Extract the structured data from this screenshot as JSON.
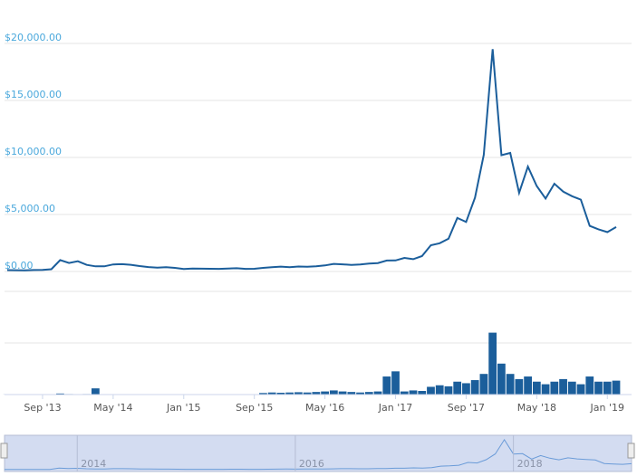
{
  "chart_data": [
    {
      "type": "line",
      "x": [
        "2013-05",
        "2013-06",
        "2013-07",
        "2013-08",
        "2013-09",
        "2013-10",
        "2013-11",
        "2013-12",
        "2014-01",
        "2014-02",
        "2014-03",
        "2014-04",
        "2014-05",
        "2014-06",
        "2014-07",
        "2014-08",
        "2014-09",
        "2014-10",
        "2014-11",
        "2014-12",
        "2015-01",
        "2015-02",
        "2015-03",
        "2015-04",
        "2015-05",
        "2015-06",
        "2015-07",
        "2015-08",
        "2015-09",
        "2015-10",
        "2015-11",
        "2015-12",
        "2016-01",
        "2016-02",
        "2016-03",
        "2016-04",
        "2016-05",
        "2016-06",
        "2016-07",
        "2016-08",
        "2016-09",
        "2016-10",
        "2016-11",
        "2016-12",
        "2017-01",
        "2017-02",
        "2017-03",
        "2017-04",
        "2017-05",
        "2017-06",
        "2017-07",
        "2017-08",
        "2017-09",
        "2017-10",
        "2017-11",
        "2017-12",
        "2018-01",
        "2018-02",
        "2018-03",
        "2018-04",
        "2018-05",
        "2018-06",
        "2018-07",
        "2018-08",
        "2018-09",
        "2018-10",
        "2018-11",
        "2018-12",
        "2019-01",
        "2019-02"
      ],
      "series": [
        {
          "color": "#1b5e9b",
          "values": [
            120,
            108,
            100,
            130,
            135,
            200,
            1000,
            750,
            900,
            580,
            450,
            450,
            620,
            640,
            590,
            480,
            390,
            340,
            380,
            320,
            220,
            255,
            245,
            235,
            230,
            265,
            285,
            230,
            236,
            315,
            380,
            430,
            370,
            440,
            415,
            450,
            530,
            670,
            625,
            575,
            610,
            700,
            740,
            960,
            970,
            1190,
            1080,
            1350,
            2300,
            2480,
            2870,
            4700,
            4340,
            6470,
            10230,
            19500,
            10200,
            10400,
            6900,
            9200,
            7500,
            6400,
            7700,
            7000,
            6600,
            6300,
            4000,
            3700,
            3450,
            3900
          ]
        }
      ],
      "xlim": [
        "2013-05",
        "2019-02"
      ],
      "xticks": [
        {
          "value": "2013-09",
          "label": "Sep '13"
        },
        {
          "value": "2014-05",
          "label": "May '14"
        },
        {
          "value": "2015-01",
          "label": "Jan '15"
        },
        {
          "value": "2015-09",
          "label": "Sep '15"
        },
        {
          "value": "2016-05",
          "label": "May '16"
        },
        {
          "value": "2017-01",
          "label": "Jan '17"
        },
        {
          "value": "2017-09",
          "label": "Sep '17"
        },
        {
          "value": "2018-05",
          "label": "May '18"
        },
        {
          "value": "2019-01",
          "label": "Jan '19"
        }
      ],
      "ylim": [
        0,
        20000
      ],
      "yticks": [
        {
          "value": 0,
          "label": "$0.00"
        },
        {
          "value": 5000,
          "label": "$5,000.00"
        },
        {
          "value": 10000,
          "label": "$10,000.00"
        },
        {
          "value": 15000,
          "label": "$15,000.00"
        },
        {
          "value": 20000,
          "label": "$20,000.00"
        }
      ],
      "grid": true,
      "navigator_xticks": [
        {
          "value": "2014-01",
          "label": "2014"
        },
        {
          "value": "2016-01",
          "label": "2016"
        },
        {
          "value": "2018-01",
          "label": "2018"
        }
      ]
    },
    {
      "type": "bar",
      "color": "#1b5e9b",
      "values": [
        0.02,
        0.02,
        0.02,
        0.03,
        0.03,
        0.05,
        0.2,
        0.1,
        0.05,
        0.1,
        1.2,
        0.05,
        0.03,
        0.03,
        0.03,
        0.02,
        0.02,
        0.02,
        0.02,
        0.02,
        0.03,
        0.02,
        0.02,
        0.02,
        0.02,
        0.02,
        0.02,
        0.02,
        0.02,
        0.3,
        0.4,
        0.35,
        0.4,
        0.45,
        0.4,
        0.5,
        0.6,
        0.8,
        0.6,
        0.5,
        0.4,
        0.5,
        0.6,
        3.5,
        4.5,
        0.6,
        0.8,
        0.7,
        1.5,
        1.8,
        1.6,
        2.5,
        2.2,
        2.8,
        4,
        12,
        6,
        4,
        3,
        3.5,
        2.5,
        2,
        2.5,
        3,
        2.5,
        2,
        3.5,
        2.5,
        2.5,
        2.7
      ],
      "ylim": [
        0,
        20
      ],
      "yticks": [
        0,
        10,
        20
      ],
      "grid": true
    }
  ]
}
